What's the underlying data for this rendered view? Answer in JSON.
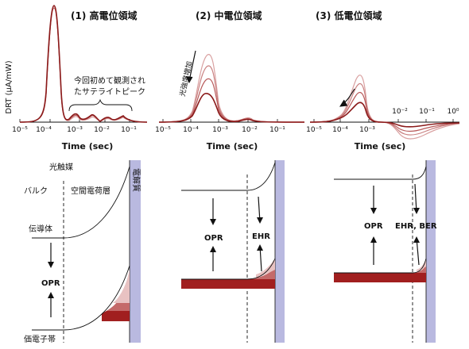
{
  "panels": [
    {
      "title": "(1) 高電位領域",
      "xlabel": "Time (sec)",
      "ticks": [
        "10⁻⁵",
        "10⁻⁴",
        "10⁻³",
        "10⁻²",
        "10⁻¹"
      ],
      "annotation_line1": "今回初めて観測され",
      "annotation_line2": "たサテライトピーク"
    },
    {
      "title": "(2) 中電位領域",
      "xlabel": "Time (sec)",
      "ticks": [
        "10⁻⁵",
        "10⁻⁴",
        "10⁻³",
        "10⁻²",
        "10⁻¹"
      ],
      "arrow_label": "光強度増加"
    },
    {
      "title": "(3) 低電位領域",
      "xlabel": "Time (sec)",
      "ticks": [
        "10⁻⁵",
        "10⁻⁴",
        "10⁻³"
      ],
      "ticks_upper": [
        "10⁻²",
        "10⁻¹",
        "10⁰"
      ]
    }
  ],
  "ylabel": "DRT (μA/mW)",
  "bands": {
    "photocatalyst": "光触媒",
    "electrolyte": "電解質",
    "bulk": "バルク",
    "space_charge": "空間電荷層",
    "conduction_band": "伝導体",
    "valence_band": "価電子帯",
    "opr": "OPR",
    "ehr": "EHR",
    "ehr_ber": "EHR, BER"
  },
  "colors": {
    "curve_dark": "#8b1a1a",
    "curve_mid": "#b85a5a",
    "curve_light": "#d9a0a0",
    "electrolyte": "#b9b9e0",
    "fill_dark": "#a11f1f",
    "fill_mid": "#c46a6a",
    "fill_light": "#e8c2c2"
  }
}
